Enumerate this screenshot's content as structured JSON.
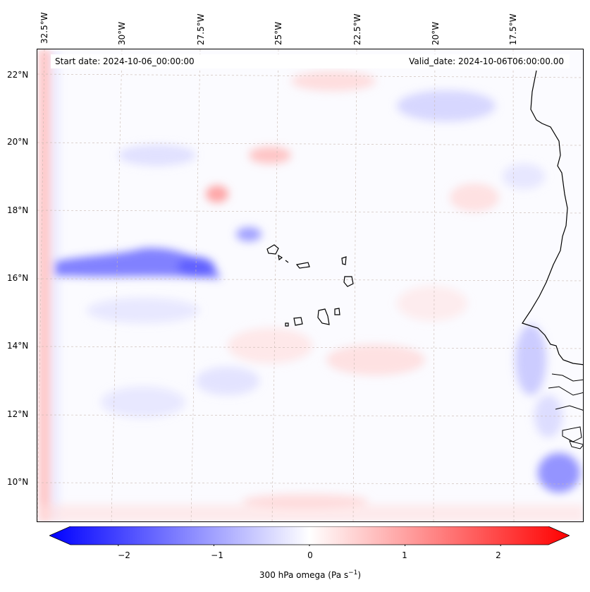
{
  "map": {
    "start_date": "Start date: 2024-10-06_00:00:00",
    "valid_date": "Valid_date: 2024-10-06T06:00:00.00",
    "lon_labels": [
      "32.5°W",
      "30°W",
      "27.5°W",
      "25°W",
      "22.5°W",
      "20°W",
      "17.5°W"
    ],
    "lat_labels": [
      "22°N",
      "20°N",
      "18°N",
      "16°N",
      "14°N",
      "12°N",
      "10°N"
    ]
  },
  "colorbar": {
    "ticks": [
      "−2",
      "−1",
      "0",
      "1",
      "2"
    ],
    "tick_values": [
      -2,
      -1,
      0,
      1,
      2
    ],
    "range": [
      -2.5,
      2.5
    ],
    "label": "300 hPa omega (Pa s",
    "label_sup": "−1",
    "label_end": ")",
    "colors": {
      "neg": "#0000ff",
      "zero": "#ffffff",
      "pos": "#ff0000"
    }
  }
}
